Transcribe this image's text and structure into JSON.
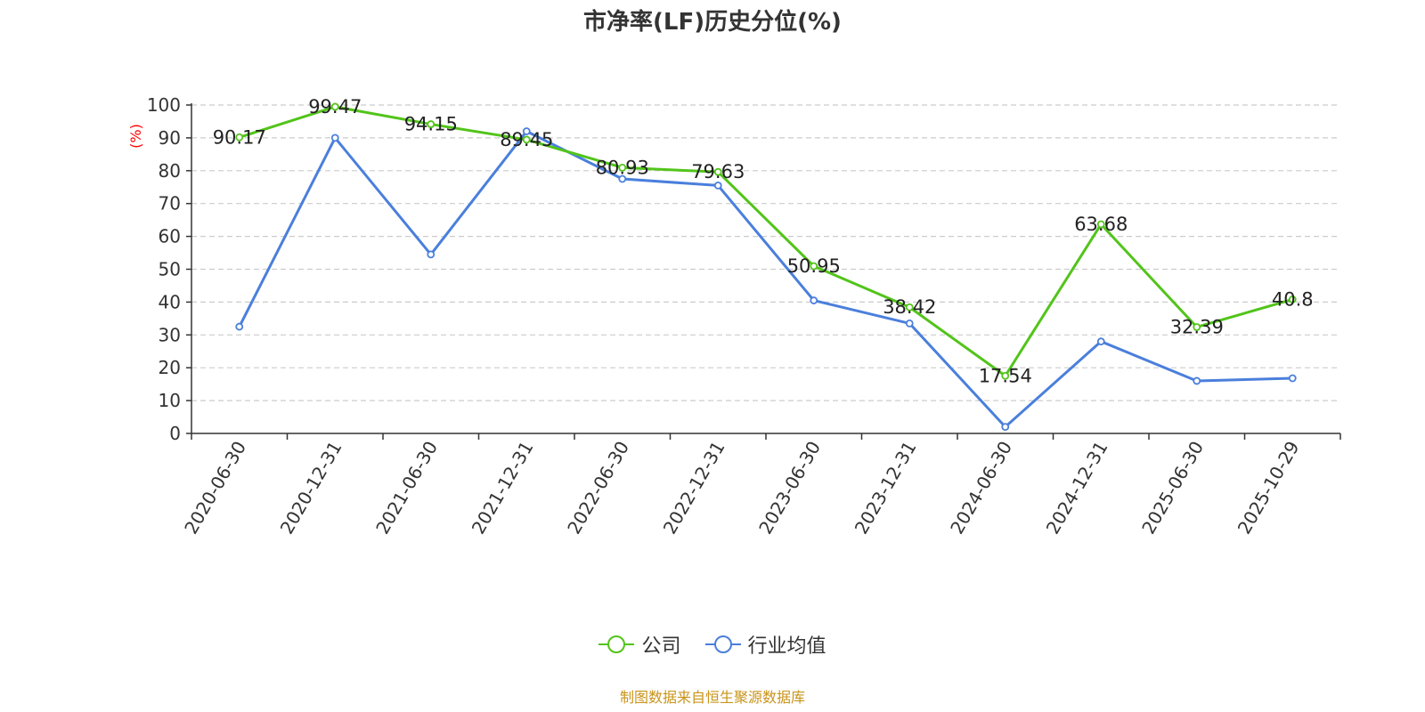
{
  "colors": {
    "company": "#52c41a",
    "industry": "#4a7fdc",
    "unit": "#ff0000",
    "source": "#c8941a"
  },
  "chart_data": {
    "type": "line",
    "title": "市净率(LF)历史分位(%)",
    "ylabel": "(%)",
    "ylim": [
      0,
      100
    ],
    "yticks": [
      0,
      10,
      20,
      30,
      40,
      50,
      60,
      70,
      80,
      90,
      100
    ],
    "grid": true,
    "legend_position": "bottom",
    "categories": [
      "2020-06-30",
      "2020-12-31",
      "2021-06-30",
      "2021-12-31",
      "2022-06-30",
      "2022-12-31",
      "2023-06-30",
      "2023-12-31",
      "2024-06-30",
      "2024-12-31",
      "2025-06-30",
      "2025-10-29"
    ],
    "series": [
      {
        "name": "公司",
        "values": [
          90.17,
          99.47,
          94.15,
          89.45,
          80.93,
          79.63,
          50.95,
          38.42,
          17.54,
          63.68,
          32.39,
          40.8
        ]
      },
      {
        "name": "行业均值",
        "values": [
          32.5,
          90,
          54.5,
          92,
          77.5,
          75.5,
          40.5,
          33.5,
          2,
          28,
          16,
          16.8
        ]
      }
    ]
  },
  "source_text": "制图数据来自恒生聚源数据库"
}
